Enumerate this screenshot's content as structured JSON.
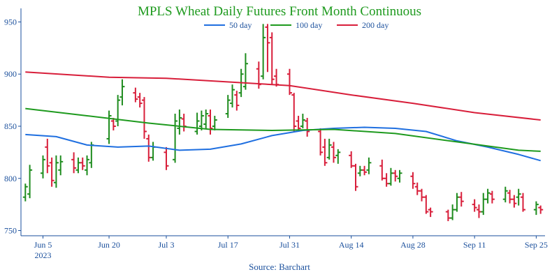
{
  "chart_data": {
    "type": "ohlc",
    "title": "MPLS Wheat Daily Futures Front Month Continuous",
    "source": "Source: Barchart",
    "up_color": "#1e8c1e",
    "down_color": "#d81e3a",
    "x": [
      "2023-06-01",
      "2023-06-02",
      "2023-06-05",
      "2023-06-06",
      "2023-06-07",
      "2023-06-08",
      "2023-06-09",
      "2023-06-12",
      "2023-06-13",
      "2023-06-14",
      "2023-06-15",
      "2023-06-16",
      "2023-06-20",
      "2023-06-21",
      "2023-06-22",
      "2023-06-23",
      "2023-06-26",
      "2023-06-27",
      "2023-06-28",
      "2023-06-29",
      "2023-06-30",
      "2023-07-03",
      "2023-07-05",
      "2023-07-06",
      "2023-07-07",
      "2023-07-10",
      "2023-07-11",
      "2023-07-12",
      "2023-07-13",
      "2023-07-14",
      "2023-07-17",
      "2023-07-18",
      "2023-07-19",
      "2023-07-20",
      "2023-07-21",
      "2023-07-24",
      "2023-07-25",
      "2023-07-26",
      "2023-07-27",
      "2023-07-28",
      "2023-07-31",
      "2023-08-01",
      "2023-08-02",
      "2023-08-03",
      "2023-08-04",
      "2023-08-07",
      "2023-08-08",
      "2023-08-09",
      "2023-08-10",
      "2023-08-11",
      "2023-08-14",
      "2023-08-15",
      "2023-08-16",
      "2023-08-17",
      "2023-08-18",
      "2023-08-21",
      "2023-08-22",
      "2023-08-23",
      "2023-08-24",
      "2023-08-25",
      "2023-08-28",
      "2023-08-29",
      "2023-08-30",
      "2023-08-31",
      "2023-09-01",
      "2023-09-05",
      "2023-09-06",
      "2023-09-07",
      "2023-09-08",
      "2023-09-11",
      "2023-09-12",
      "2023-09-13",
      "2023-09-14",
      "2023-09-15",
      "2023-09-18",
      "2023-09-19",
      "2023-09-20",
      "2023-09-21",
      "2023-09-22",
      "2023-09-25",
      "2023-09-26"
    ],
    "open": [
      782,
      785,
      805,
      830,
      815,
      796,
      808,
      818,
      808,
      815,
      808,
      815,
      838,
      855,
      855,
      878,
      882,
      878,
      875,
      838,
      820,
      825,
      818,
      848,
      857,
      845,
      850,
      852,
      860,
      850,
      862,
      872,
      880,
      882,
      888,
      905,
      898,
      945,
      935,
      898,
      900,
      880,
      855,
      850,
      855,
      845,
      830,
      820,
      830,
      822,
      822,
      812,
      805,
      808,
      808,
      812,
      800,
      795,
      805,
      800,
      802,
      792,
      788,
      782,
      770,
      768,
      762,
      770,
      782,
      775,
      770,
      768,
      780,
      785,
      780,
      786,
      780,
      782,
      782,
      770,
      772
    ],
    "high": [
      795,
      813,
      822,
      838,
      820,
      822,
      822,
      825,
      820,
      820,
      822,
      835,
      865,
      858,
      880,
      895,
      887,
      882,
      878,
      842,
      835,
      830,
      862,
      866,
      862,
      863,
      865,
      866,
      866,
      860,
      880,
      890,
      884,
      905,
      920,
      912,
      948,
      948,
      940,
      905,
      905,
      882,
      860,
      862,
      858,
      848,
      838,
      838,
      835,
      828,
      826,
      814,
      812,
      812,
      820,
      818,
      805,
      810,
      808,
      808,
      806,
      796,
      790,
      784,
      772,
      770,
      775,
      786,
      787,
      780,
      775,
      786,
      790,
      788,
      792,
      789,
      784,
      790,
      786,
      778,
      774
    ],
    "low": [
      778,
      781,
      800,
      805,
      792,
      791,
      803,
      805,
      805,
      808,
      803,
      810,
      833,
      846,
      850,
      870,
      873,
      868,
      838,
      816,
      817,
      808,
      815,
      842,
      845,
      842,
      846,
      848,
      842,
      846,
      858,
      868,
      865,
      878,
      885,
      886,
      895,
      902,
      890,
      888,
      880,
      845,
      845,
      848,
      840,
      822,
      812,
      818,
      815,
      814,
      810,
      788,
      802,
      803,
      804,
      798,
      792,
      793,
      797,
      796,
      790,
      784,
      778,
      766,
      763,
      759,
      760,
      768,
      773,
      768,
      762,
      765,
      776,
      776,
      777,
      776,
      772,
      774,
      768,
      765,
      766
    ],
    "close": [
      792,
      808,
      818,
      812,
      798,
      815,
      816,
      810,
      815,
      812,
      818,
      832,
      860,
      850,
      875,
      888,
      876,
      872,
      845,
      820,
      830,
      812,
      855,
      858,
      850,
      855,
      860,
      862,
      848,
      856,
      875,
      885,
      870,
      900,
      910,
      890,
      935,
      930,
      895,
      890,
      882,
      850,
      848,
      856,
      845,
      825,
      815,
      832,
      820,
      825,
      812,
      792,
      808,
      806,
      815,
      800,
      795,
      805,
      802,
      805,
      795,
      788,
      782,
      768,
      768,
      762,
      770,
      782,
      778,
      772,
      768,
      780,
      786,
      780,
      788,
      780,
      776,
      785,
      770,
      775,
      770
    ],
    "series": [
      {
        "name": "50 day",
        "color": "#1f6fe0",
        "x": [
          "2023-06-01",
          "2023-06-08",
          "2023-06-15",
          "2023-06-22",
          "2023-06-29",
          "2023-07-06",
          "2023-07-13",
          "2023-07-20",
          "2023-07-27",
          "2023-08-03",
          "2023-08-10",
          "2023-08-17",
          "2023-08-24",
          "2023-08-31",
          "2023-09-07",
          "2023-09-14",
          "2023-09-21",
          "2023-09-26"
        ],
        "values": [
          842,
          840,
          832,
          830,
          831,
          827,
          828,
          833,
          841,
          846,
          848,
          849,
          848,
          845,
          836,
          830,
          823,
          817
        ]
      },
      {
        "name": "100 day",
        "color": "#1e9a1e",
        "x": [
          "2023-06-01",
          "2023-06-15",
          "2023-06-29",
          "2023-07-13",
          "2023-07-27",
          "2023-08-10",
          "2023-08-24",
          "2023-09-07",
          "2023-09-21",
          "2023-09-26"
        ],
        "values": [
          867,
          860,
          853,
          847,
          846,
          847,
          843,
          835,
          827,
          826
        ]
      },
      {
        "name": "200 day",
        "color": "#d81e3a",
        "x": [
          "2023-06-01",
          "2023-06-20",
          "2023-07-03",
          "2023-07-31",
          "2023-08-14",
          "2023-08-28",
          "2023-09-11",
          "2023-09-26"
        ],
        "values": [
          902,
          897,
          896,
          889,
          880,
          872,
          863,
          856
        ]
      }
    ],
    "xlim": [
      "2023-05-31",
      "2023-09-27"
    ],
    "xticks": [
      {
        "value": "2023-06-05",
        "label": "Jun 5"
      },
      {
        "value": "2023-06-20",
        "label": "Jun 20"
      },
      {
        "value": "2023-07-03",
        "label": "Jul 3"
      },
      {
        "value": "2023-07-17",
        "label": "Jul 17"
      },
      {
        "value": "2023-07-31",
        "label": "Jul 31"
      },
      {
        "value": "2023-08-14",
        "label": "Aug 14"
      },
      {
        "value": "2023-08-28",
        "label": "Aug 28"
      },
      {
        "value": "2023-09-11",
        "label": "Sep 11"
      },
      {
        "value": "2023-09-25",
        "label": "Sep 25"
      }
    ],
    "xtick_year": "2023",
    "ylim": [
      745,
      963
    ],
    "yticks": [
      750,
      800,
      850,
      900,
      950
    ]
  }
}
